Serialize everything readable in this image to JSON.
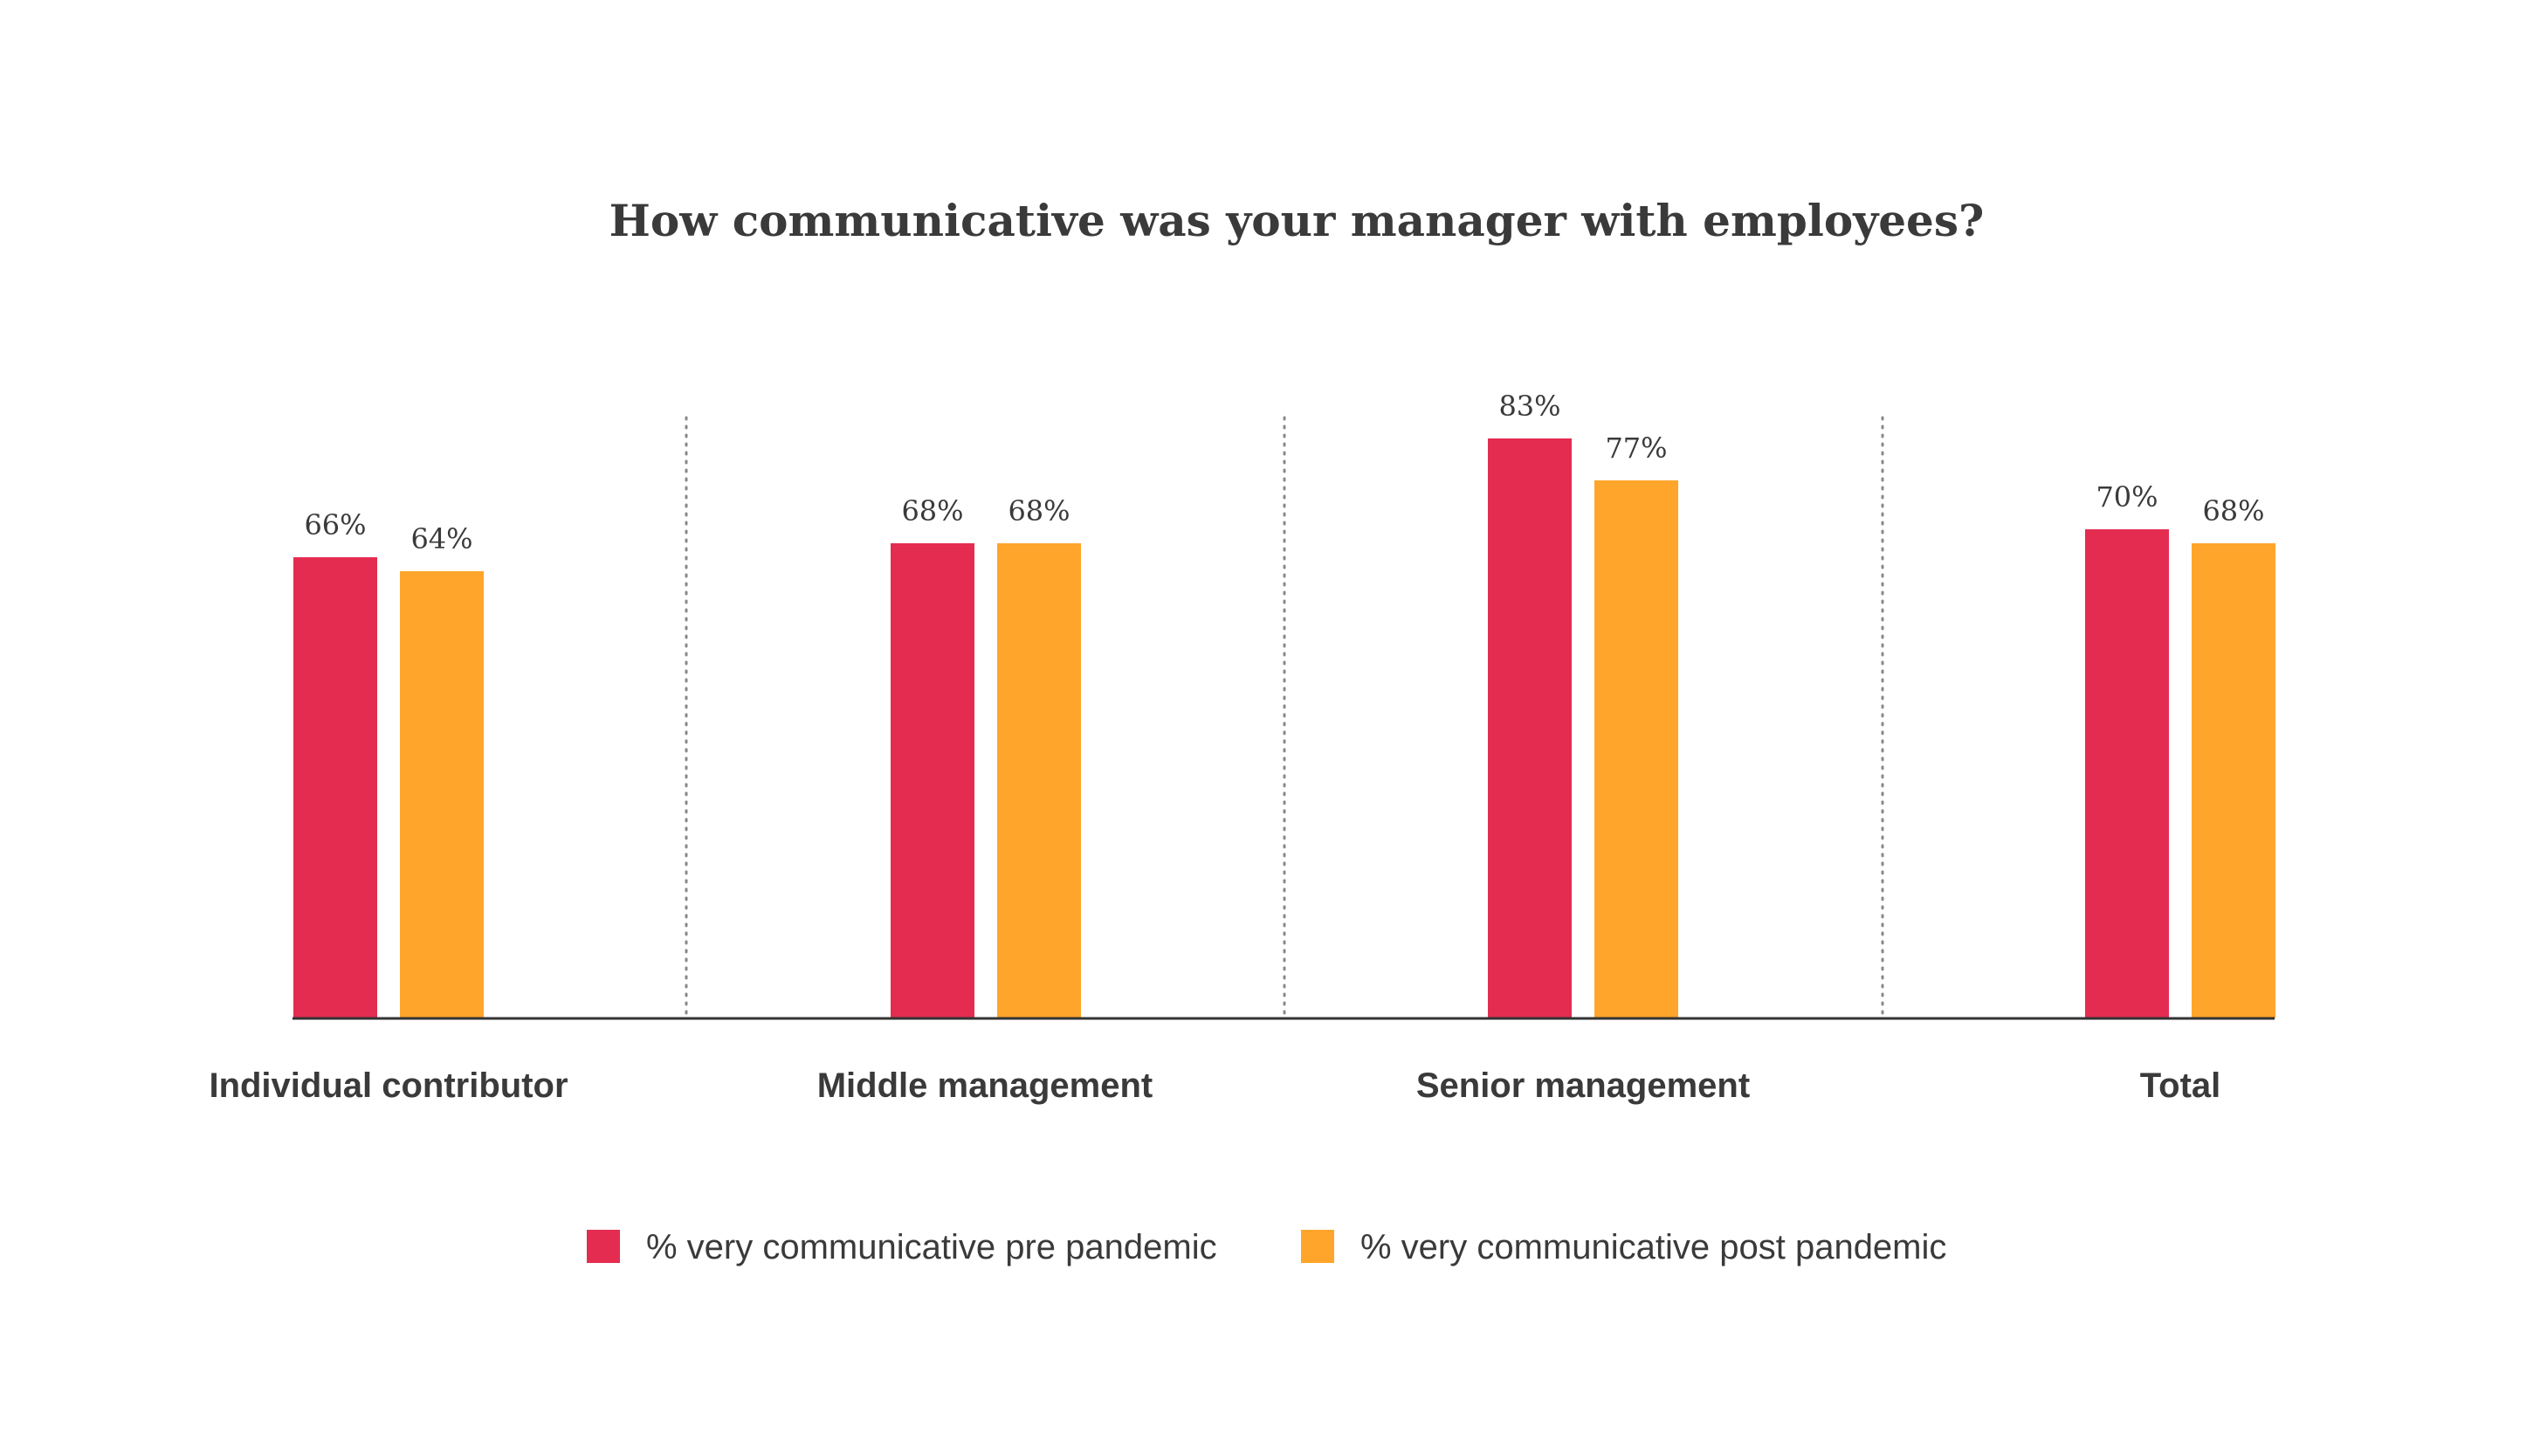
{
  "colors": {
    "pre": "#e42c51",
    "post": "#ffa52b",
    "text": "#3a3a3a",
    "axis": "#333333",
    "divider": "#888888"
  },
  "chart_data": {
    "type": "bar",
    "title": "How communicative was your manager with employees?",
    "categories": [
      "Individual contributor",
      "Middle management",
      "Senior management",
      "Total"
    ],
    "series": [
      {
        "name": "% very communicative pre pandemic",
        "values": [
          66,
          68,
          83,
          70
        ],
        "labels": [
          "66%",
          "68%",
          "83%",
          "70%"
        ]
      },
      {
        "name": "% very communicative post pandemic",
        "values": [
          64,
          68,
          77,
          68
        ],
        "labels": [
          "64%",
          "68%",
          "77%",
          "68%"
        ]
      }
    ],
    "ylim": [
      0,
      100
    ],
    "grid": false,
    "legend": "bottom-center",
    "xlabel": "",
    "ylabel": ""
  }
}
